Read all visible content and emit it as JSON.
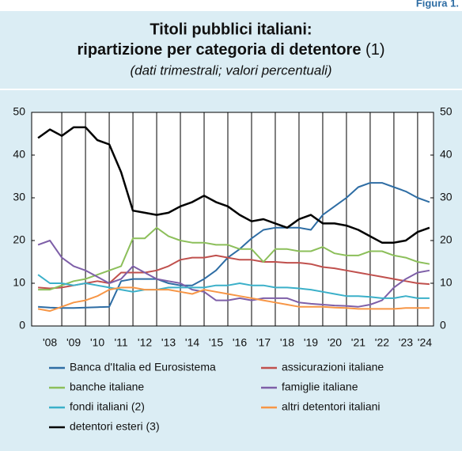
{
  "chart_data": {
    "type": "line",
    "figure_label": "Figura 1.",
    "title": [
      "Titoli pubblici italiani:",
      "ripartizione per categoria di detentore"
    ],
    "title_note": "(1)",
    "subtitle": "(dati trimestrali; valori percentuali)",
    "x": [
      2008,
      2008.5,
      2009,
      2009.5,
      2010,
      2010.5,
      2011,
      2011.5,
      2012,
      2012.5,
      2013,
      2013.5,
      2014,
      2014.5,
      2015,
      2015.5,
      2016,
      2016.5,
      2017,
      2017.5,
      2018,
      2018.5,
      2019,
      2019.5,
      2020,
      2020.5,
      2021,
      2021.5,
      2022,
      2022.5,
      2023,
      2023.5,
      2024,
      2024.5
    ],
    "xlim": [
      2007.73,
      2024.67
    ],
    "xticks": [
      {
        "value": 2008.5,
        "label": "'08"
      },
      {
        "value": 2009.5,
        "label": "'09"
      },
      {
        "value": 2010.5,
        "label": "'10"
      },
      {
        "value": 2011.5,
        "label": "'11"
      },
      {
        "value": 2012.5,
        "label": "'12"
      },
      {
        "value": 2013.5,
        "label": "'13"
      },
      {
        "value": 2014.5,
        "label": "'14"
      },
      {
        "value": 2015.5,
        "label": "'15"
      },
      {
        "value": 2016.5,
        "label": "'16"
      },
      {
        "value": 2017.5,
        "label": "'17"
      },
      {
        "value": 2018.5,
        "label": "'18"
      },
      {
        "value": 2019.5,
        "label": "'19"
      },
      {
        "value": 2020.5,
        "label": "'20"
      },
      {
        "value": 2021.5,
        "label": "'21"
      },
      {
        "value": 2022.5,
        "label": "'22"
      },
      {
        "value": 2023.5,
        "label": "'23"
      },
      {
        "value": 2024.3,
        "label": "'24"
      }
    ],
    "xgrid": [
      2009,
      2010,
      2011,
      2012,
      2013,
      2014,
      2015,
      2016,
      2017,
      2018,
      2019,
      2020,
      2021,
      2022,
      2023,
      2024
    ],
    "ylim": [
      0,
      50
    ],
    "yticks": [
      0,
      10,
      20,
      30,
      40,
      50
    ],
    "y2lim": [
      0,
      50
    ],
    "y2ticks": [
      0,
      10,
      20,
      30,
      40,
      50
    ],
    "series": [
      {
        "name": "Banca d'Italia ed Eurosistema",
        "color": "#2e6da4",
        "values": [
          4.5,
          4.3,
          4.2,
          4.2,
          4.3,
          4.4,
          4.5,
          10.5,
          11,
          11,
          11,
          10,
          9.5,
          9.5,
          11,
          13,
          16,
          18,
          20.5,
          22.5,
          23,
          23,
          23,
          22.5,
          26,
          28,
          30,
          32.5,
          33.5,
          33.5,
          32.5,
          31.5,
          30,
          29
        ]
      },
      {
        "name": "assicurazioni italiane",
        "color": "#c0504d",
        "values": [
          9,
          8.8,
          9,
          9.5,
          10,
          10.5,
          10,
          12.5,
          12.5,
          12.5,
          13,
          14,
          15.5,
          16,
          16,
          16.5,
          16,
          15.5,
          15.5,
          15,
          15,
          14.8,
          14.8,
          14.5,
          13.8,
          13.5,
          13,
          12.5,
          12,
          11.5,
          11,
          10.5,
          10,
          9.8
        ]
      },
      {
        "name": "banche italiane",
        "color": "#8cbf5a",
        "values": [
          8.5,
          8.5,
          9.5,
          10.5,
          11,
          12,
          13,
          14,
          20.5,
          20.5,
          23,
          21,
          20,
          19.5,
          19.5,
          19,
          19,
          18,
          18,
          15,
          18,
          18,
          17.5,
          17.5,
          18.5,
          17,
          16.5,
          16.5,
          17.5,
          17.5,
          16.5,
          16,
          15,
          14.5
        ]
      },
      {
        "name": "famiglie italiane",
        "color": "#7e5fa8",
        "values": [
          19,
          20,
          16,
          14,
          13,
          11.5,
          10,
          11,
          14,
          12.5,
          11,
          10.5,
          10,
          8.5,
          8,
          6,
          6,
          6.5,
          6,
          6.5,
          6.5,
          6.5,
          5.5,
          5.2,
          5,
          4.8,
          4.7,
          4.5,
          5,
          6,
          9,
          11,
          12.5,
          13
        ]
      },
      {
        "name": "fondi italiani (2)",
        "color": "#3bb0c9",
        "values": [
          12,
          10,
          10,
          9.5,
          10,
          9.5,
          9,
          8.5,
          8,
          8.5,
          8.5,
          9,
          9,
          9,
          9,
          9.5,
          9.5,
          10,
          9.5,
          9.5,
          9,
          9,
          8.8,
          8.5,
          8,
          7.5,
          7,
          7,
          6.8,
          6.5,
          6.5,
          7,
          6.5,
          6.5
        ]
      },
      {
        "name": "altri detentori italiani",
        "color": "#f79646",
        "values": [
          4,
          3.5,
          4.5,
          5.5,
          6,
          7,
          8.5,
          9,
          9,
          8.5,
          8.5,
          8.5,
          8,
          7.5,
          8.5,
          8,
          7.5,
          7,
          6.5,
          6,
          5.5,
          5,
          4.5,
          4.5,
          4.5,
          4.3,
          4.2,
          4,
          4,
          4,
          4,
          4.2,
          4.2,
          4.2
        ]
      },
      {
        "name": "detentori esteri (3)",
        "color": "#000000",
        "values": [
          44,
          46,
          44.5,
          46.5,
          46.5,
          43.5,
          42.5,
          36,
          27,
          26.5,
          26,
          26.5,
          28,
          29,
          30.5,
          29,
          28,
          26,
          24.5,
          25,
          24,
          23,
          25,
          26,
          24,
          24,
          23.5,
          22.5,
          21,
          19.5,
          19.5,
          20,
          22,
          23
        ]
      }
    ]
  }
}
